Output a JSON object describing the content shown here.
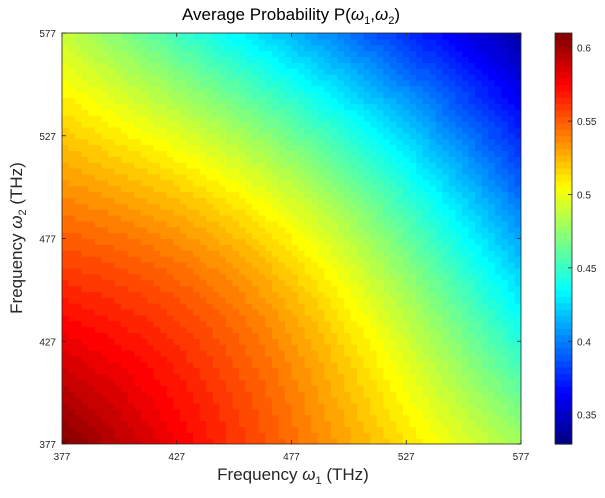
{
  "chart_data": {
    "type": "heatmap",
    "title": {
      "prefix": "Average Probability P(",
      "var1": "ω",
      "sub1": "1",
      "comma": ",",
      "var2": "ω",
      "sub2": "2",
      "suffix": ")"
    },
    "xlabel": {
      "prefix": "Frequency ",
      "var": "ω",
      "sub": "1",
      "suffix": " (THz)"
    },
    "ylabel": {
      "prefix": "Frequency ",
      "var": "ω",
      "sub": "2",
      "suffix": " (THz)"
    },
    "xlim": [
      377,
      577
    ],
    "ylim": [
      377,
      577
    ],
    "xticks": [
      "377",
      "427",
      "477",
      "527",
      "577"
    ],
    "yticks": [
      "377",
      "427",
      "477",
      "527",
      "577"
    ],
    "colorbar": {
      "clim": [
        0.33,
        0.61
      ],
      "ticks": [
        "0.35",
        "0.4",
        "0.45",
        "0.5",
        "0.55",
        "0.6"
      ],
      "colormap": "jet"
    },
    "surface": {
      "description_values": "P at corners (data units)",
      "p_x377_y377": 0.61,
      "p_x577_y377": 0.48,
      "p_x377_y577": 0.49,
      "p_x577_y577": 0.34
    },
    "grid": false
  }
}
